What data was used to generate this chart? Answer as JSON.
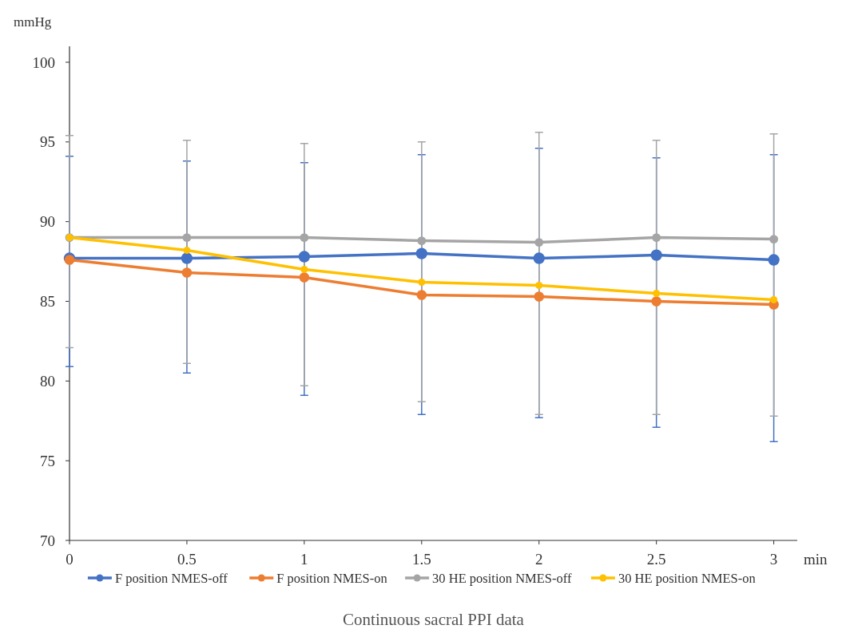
{
  "chart_data": {
    "type": "line",
    "title": "Continuous sacral PPI data",
    "xlabel": "min",
    "ylabel": "mmHg",
    "x": [
      0,
      0.5,
      1,
      1.5,
      2,
      2.5,
      3
    ],
    "xlim": [
      0,
      3.1
    ],
    "xticks": [
      0,
      0.5,
      1,
      1.5,
      2,
      2.5,
      3
    ],
    "ylim": [
      70,
      101
    ],
    "yticks": [
      70,
      75,
      80,
      85,
      90,
      95,
      100
    ],
    "grid": false,
    "legend": "bottom",
    "marker": "circle",
    "line_style": "solid",
    "series": [
      {
        "name": "F position NMES-off",
        "color": "#4472c4",
        "values": [
          87.7,
          87.7,
          87.8,
          88.0,
          87.7,
          87.9,
          87.6
        ],
        "errors": [
          [
            80.9,
            94.1
          ],
          [
            80.5,
            93.8
          ],
          [
            79.1,
            93.7
          ],
          [
            77.9,
            94.2
          ],
          [
            77.7,
            94.6
          ],
          [
            77.1,
            94.0
          ],
          [
            76.2,
            94.2
          ]
        ]
      },
      {
        "name": "F position NMES-on",
        "color": "#ed7d31",
        "values": [
          87.6,
          86.8,
          86.5,
          85.4,
          85.3,
          85.0,
          84.8
        ]
      },
      {
        "name": "30 HE position NMES-off",
        "color": "#a5a5a5",
        "values": [
          89.0,
          89.0,
          89.0,
          88.8,
          88.7,
          89.0,
          88.9
        ],
        "errors": [
          [
            82.1,
            95.4
          ],
          [
            81.1,
            95.1
          ],
          [
            79.7,
            94.9
          ],
          [
            78.7,
            95.0
          ],
          [
            77.9,
            95.6
          ],
          [
            77.9,
            95.1
          ],
          [
            77.8,
            95.5
          ]
        ]
      },
      {
        "name": "30 HE position NMES-on",
        "color": "#ffc000",
        "values": [
          89.0,
          88.2,
          87.0,
          86.2,
          86.0,
          85.5,
          85.1
        ]
      }
    ]
  }
}
